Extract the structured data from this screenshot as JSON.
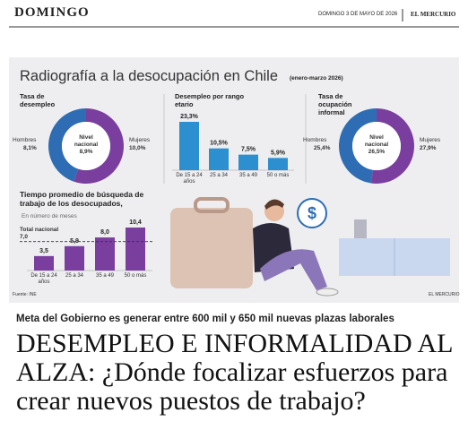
{
  "header": {
    "section": "DOMINGO",
    "date": "DOMINGO 3 DE MAYO DE 2026",
    "paper": "EL MERCURIO"
  },
  "infographic": {
    "title": "Radiografía a la desocupación en Chile",
    "period": "(enero-marzo 2026)",
    "unemployment_rate": {
      "title": "Tasa de desempleo",
      "center_label": "Nivel nacional",
      "center_value": "8,9%",
      "segments": [
        {
          "label": "Hombres",
          "value": 8.1,
          "value_label": "8,1%",
          "color": "#2e6db4"
        },
        {
          "label": "Mujeres",
          "value": 10.0,
          "value_label": "10,0%",
          "color": "#7a3f9e"
        }
      ]
    },
    "by_age": {
      "title": "Desempleo por rango etario",
      "color": "#2b8fd0",
      "max": 23.3,
      "categories": [
        "De 15 a 24 años",
        "25 a 34",
        "35 a 49",
        "50 o más"
      ],
      "values": [
        23.3,
        10.5,
        7.5,
        5.9
      ],
      "value_labels": [
        "23,3%",
        "10,5%",
        "7,5%",
        "5,9%"
      ]
    },
    "informality": {
      "title": "Tasa de ocupación informal",
      "center_label": "Nivel nacional",
      "center_value": "26,5%",
      "segments": [
        {
          "label": "Hombres",
          "value": 25.4,
          "value_label": "25,4%",
          "color": "#2e6db4"
        },
        {
          "label": "Mujeres",
          "value": 27.9,
          "value_label": "27,9%",
          "color": "#7a3f9e"
        }
      ]
    },
    "search_time": {
      "title": "Tiempo promedio de búsqueda de trabajo de los desocupados,",
      "unit": "En número de meses",
      "color": "#7a3f9e",
      "max": 10.4,
      "categories": [
        "De 15 a 24 años",
        "25 a 34",
        "35 a 49",
        "50 o más"
      ],
      "values": [
        3.5,
        5.9,
        8.0,
        10.4
      ],
      "value_labels": [
        "3,5",
        "5,9",
        "8,0",
        "10,4"
      ],
      "total": {
        "label": "Total nacional",
        "value": 7.0,
        "value_label": "7,0"
      }
    },
    "source": "Fuente: INE",
    "credit": "EL MERCURIO"
  },
  "article": {
    "kicker": "Meta del Gobierno es generar entre 600 mil y 650 mil nuevas plazas laborales",
    "headline": "DESEMPLEO E INFORMALIDAD AL ALZA: ¿Dónde focalizar esfuerzos para crear nuevos puestos de trabajo?"
  }
}
